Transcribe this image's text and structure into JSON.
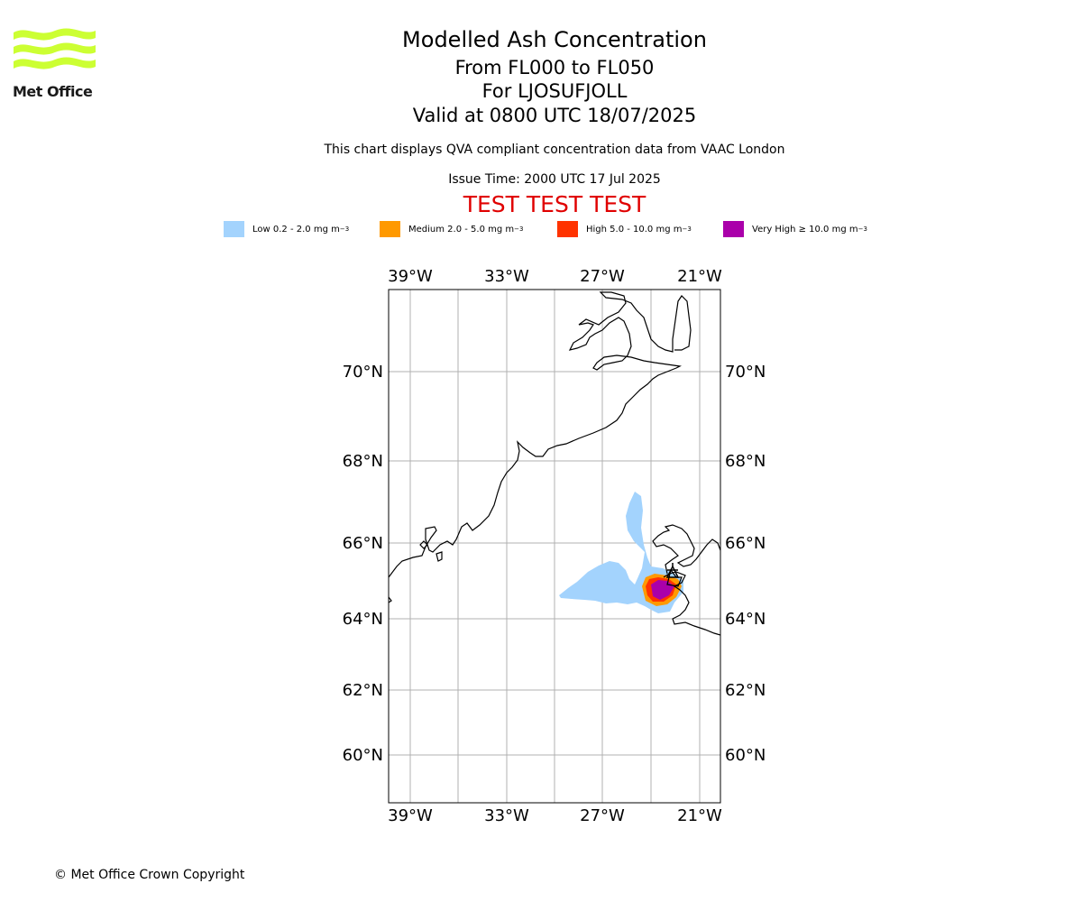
{
  "logo": {
    "text": "Met Office",
    "color": "#ccff33"
  },
  "title": {
    "line1": "Modelled Ash Concentration",
    "line2": "From FL000 to FL050",
    "line3": "For LJOSUFJOLL",
    "line4": "Valid at 0800 UTC 18/07/2025"
  },
  "description": "This chart displays QVA compliant concentration data from VAAC London",
  "issue_time": "Issue Time: 2000 UTC 17 Jul 2025",
  "test_banner": "TEST TEST TEST",
  "legend": [
    {
      "label": "Low 0.2 - 2.0 mg m",
      "color": "#a3d3fd"
    },
    {
      "label": "Medium 2.0 - 5.0 mg m",
      "color": "#ff9900"
    },
    {
      "label": "High 5.0 - 10.0 mg m",
      "color": "#ff3300"
    },
    {
      "label": "Very High ≥ 10.0 mg m",
      "color": "#aa00aa"
    }
  ],
  "legend_unit_exponent": "−3",
  "map": {
    "lon_ticks": [
      "39°W",
      "33°W",
      "27°W",
      "21°W"
    ],
    "lat_ticks": [
      "70°N",
      "68°N",
      "66°N",
      "64°N",
      "62°N",
      "60°N"
    ],
    "volcano_marker": "volcano-triangle",
    "colors": {
      "grid": "#b0b0b0",
      "coast": "#000000"
    }
  },
  "copyright": "© Met Office Crown Copyright"
}
